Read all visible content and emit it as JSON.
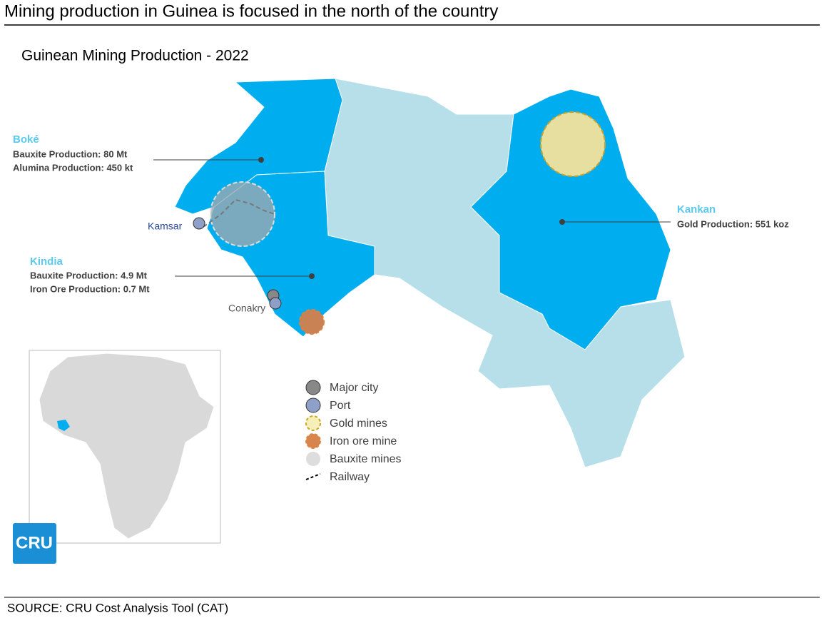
{
  "header": {
    "title": "Mining production in Guinea is focused in the north of the country",
    "subtitle": "Guinean Mining Production - 2022"
  },
  "regions": [
    {
      "name": "Boké",
      "lines": [
        "Bauxite Production: 80 Mt",
        "Alumina Production: 450 kt"
      ]
    },
    {
      "name": "Kindia",
      "lines": [
        "Bauxite Production: 4.9 Mt",
        "Iron Ore Production: 0.7 Mt"
      ]
    },
    {
      "name": "Kankan",
      "lines": [
        "Gold Production: 551 koz"
      ]
    }
  ],
  "cities": [
    "Kamsar",
    "Conakry"
  ],
  "legend": [
    "Major city",
    "Port",
    "Gold mines",
    "Iron ore mine",
    "Bauxite mines",
    "Railway"
  ],
  "logo": "CRU",
  "footer": {
    "source": "SOURCE: CRU Cost Analysis Tool (CAT)"
  }
}
